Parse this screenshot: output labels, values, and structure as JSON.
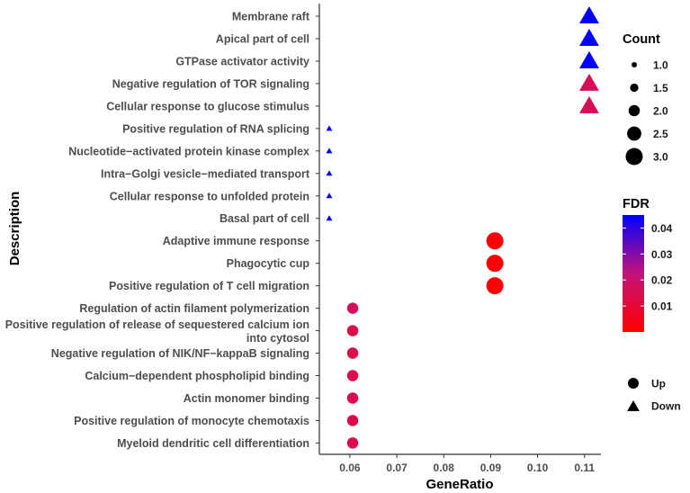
{
  "chart_data": {
    "type": "scatter",
    "xlabel": "GeneRatio",
    "ylabel": "Description",
    "xlim": [
      0.0535,
      0.1135
    ],
    "xticks": [
      0.06,
      0.07,
      0.08,
      0.09,
      0.1,
      0.11
    ],
    "xtick_labels": [
      "0.06",
      "0.07",
      "0.08",
      "0.09",
      "0.10",
      "0.11"
    ],
    "grid": false,
    "points": [
      {
        "description": "Membrane raft",
        "gene_ratio": 0.111,
        "count": 3,
        "fdr": 0.045,
        "direction": "Down"
      },
      {
        "description": "Apical part of cell",
        "gene_ratio": 0.111,
        "count": 3,
        "fdr": 0.045,
        "direction": "Down"
      },
      {
        "description": "GTPase activator activity",
        "gene_ratio": 0.111,
        "count": 3,
        "fdr": 0.045,
        "direction": "Down"
      },
      {
        "description": "Negative regulation of TOR signaling",
        "gene_ratio": 0.111,
        "count": 3,
        "fdr": 0.016,
        "direction": "Down"
      },
      {
        "description": "Cellular response to glucose stimulus",
        "gene_ratio": 0.111,
        "count": 3,
        "fdr": 0.016,
        "direction": "Down"
      },
      {
        "description": "Positive regulation of RNA splicing",
        "gene_ratio": 0.0556,
        "count": 1,
        "fdr": 0.045,
        "direction": "Down"
      },
      {
        "description": "Nucleotide−activated protein kinase complex",
        "gene_ratio": 0.0556,
        "count": 1,
        "fdr": 0.045,
        "direction": "Down"
      },
      {
        "description": "Intra−Golgi vesicle−mediated transport",
        "gene_ratio": 0.0556,
        "count": 1,
        "fdr": 0.045,
        "direction": "Down"
      },
      {
        "description": "Cellular response to unfolded protein",
        "gene_ratio": 0.0556,
        "count": 1,
        "fdr": 0.045,
        "direction": "Down"
      },
      {
        "description": "Basal part of cell",
        "gene_ratio": 0.0556,
        "count": 1,
        "fdr": 0.045,
        "direction": "Down"
      },
      {
        "description": "Adaptive immune response",
        "gene_ratio": 0.0909,
        "count": 3,
        "fdr": 0.0005,
        "direction": "Up"
      },
      {
        "description": "Phagocytic cup",
        "gene_ratio": 0.0909,
        "count": 3,
        "fdr": 0.0005,
        "direction": "Up"
      },
      {
        "description": "Positive regulation of T cell migration",
        "gene_ratio": 0.0909,
        "count": 3,
        "fdr": 0.0005,
        "direction": "Up"
      },
      {
        "description": "Regulation of actin filament polymerization",
        "gene_ratio": 0.0606,
        "count": 2,
        "fdr": 0.017,
        "direction": "Up"
      },
      {
        "description": "Positive regulation of release of sequestered calcium ion into cytosol",
        "label_lines": [
          "Positive regulation of release of sequestered calcium ion",
          "into cytosol"
        ],
        "gene_ratio": 0.0606,
        "count": 2,
        "fdr": 0.014,
        "direction": "Up"
      },
      {
        "description": "Negative regulation of NIK/NF−kappaB signaling",
        "gene_ratio": 0.0606,
        "count": 2,
        "fdr": 0.014,
        "direction": "Up"
      },
      {
        "description": "Calcium−dependent phospholipid binding",
        "gene_ratio": 0.0606,
        "count": 2,
        "fdr": 0.014,
        "direction": "Up"
      },
      {
        "description": "Actin monomer binding",
        "gene_ratio": 0.0606,
        "count": 2,
        "fdr": 0.014,
        "direction": "Up"
      },
      {
        "description": "Positive regulation of monocyte chemotaxis",
        "gene_ratio": 0.0606,
        "count": 2,
        "fdr": 0.014,
        "direction": "Up"
      },
      {
        "description": "Myeloid dendritic cell differentiation",
        "gene_ratio": 0.0606,
        "count": 2,
        "fdr": 0.014,
        "direction": "Up"
      }
    ],
    "legend_count": {
      "title": "Count",
      "values": [
        1.0,
        1.5,
        2.0,
        2.5,
        3.0
      ],
      "labels": [
        "1.0",
        "1.5",
        "2.0",
        "2.5",
        "3.0"
      ]
    },
    "legend_fdr": {
      "title": "FDR",
      "range": [
        0.0,
        0.045
      ],
      "ticks": [
        0.01,
        0.02,
        0.03,
        0.04
      ],
      "tick_labels": [
        "0.01",
        "0.02",
        "0.03",
        "0.04"
      ],
      "low_color": "#ff0000",
      "high_color": "#0000ff"
    },
    "legend_direction": {
      "entries": [
        {
          "label": "Up",
          "shape": "circle"
        },
        {
          "label": "Down",
          "shape": "triangle"
        }
      ]
    },
    "legend_position": "right"
  }
}
